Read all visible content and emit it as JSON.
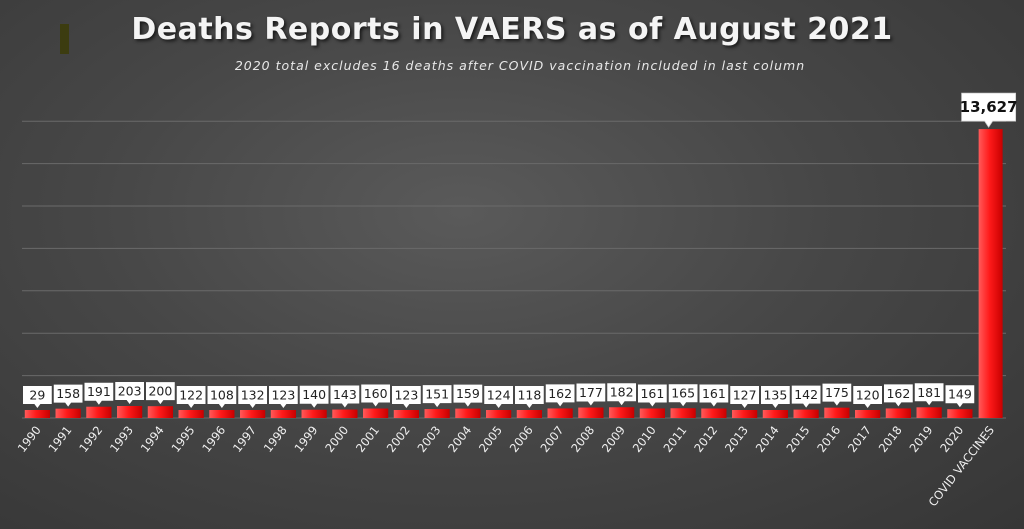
{
  "chart_data": {
    "type": "bar",
    "title": "Deaths Reports in VAERS as of August 2021",
    "subtitle": "2020 total excludes 16 deaths after COVID vaccination included in last column",
    "categories": [
      "1990",
      "1991",
      "1992",
      "1993",
      "1994",
      "1995",
      "1996",
      "1997",
      "1998",
      "1999",
      "2000",
      "2001",
      "2002",
      "2003",
      "2004",
      "2005",
      "2006",
      "2007",
      "2008",
      "2009",
      "2010",
      "2011",
      "2012",
      "2013",
      "2014",
      "2015",
      "2016",
      "2017",
      "2018",
      "2019",
      "2020",
      "COVID VACCINES"
    ],
    "values": [
      29,
      158,
      191,
      203,
      200,
      122,
      108,
      132,
      123,
      140,
      143,
      160,
      123,
      151,
      159,
      124,
      118,
      162,
      177,
      182,
      161,
      165,
      161,
      127,
      135,
      142,
      175,
      120,
      162,
      181,
      149,
      13627
    ],
    "labels": [
      "29",
      "158",
      "191",
      "203",
      "200",
      "122",
      "108",
      "132",
      "123",
      "140",
      "143",
      "160",
      "123",
      "151",
      "159",
      "124",
      "118",
      "162",
      "177",
      "182",
      "161",
      "165",
      "161",
      "127",
      "135",
      "142",
      "175",
      "120",
      "162",
      "181",
      "149",
      "13,627"
    ],
    "ylim": [
      0,
      15000
    ],
    "grid": true,
    "legend": "none",
    "bar_color": "#ff1a1a",
    "gridline_color": "#6a6a6a"
  }
}
